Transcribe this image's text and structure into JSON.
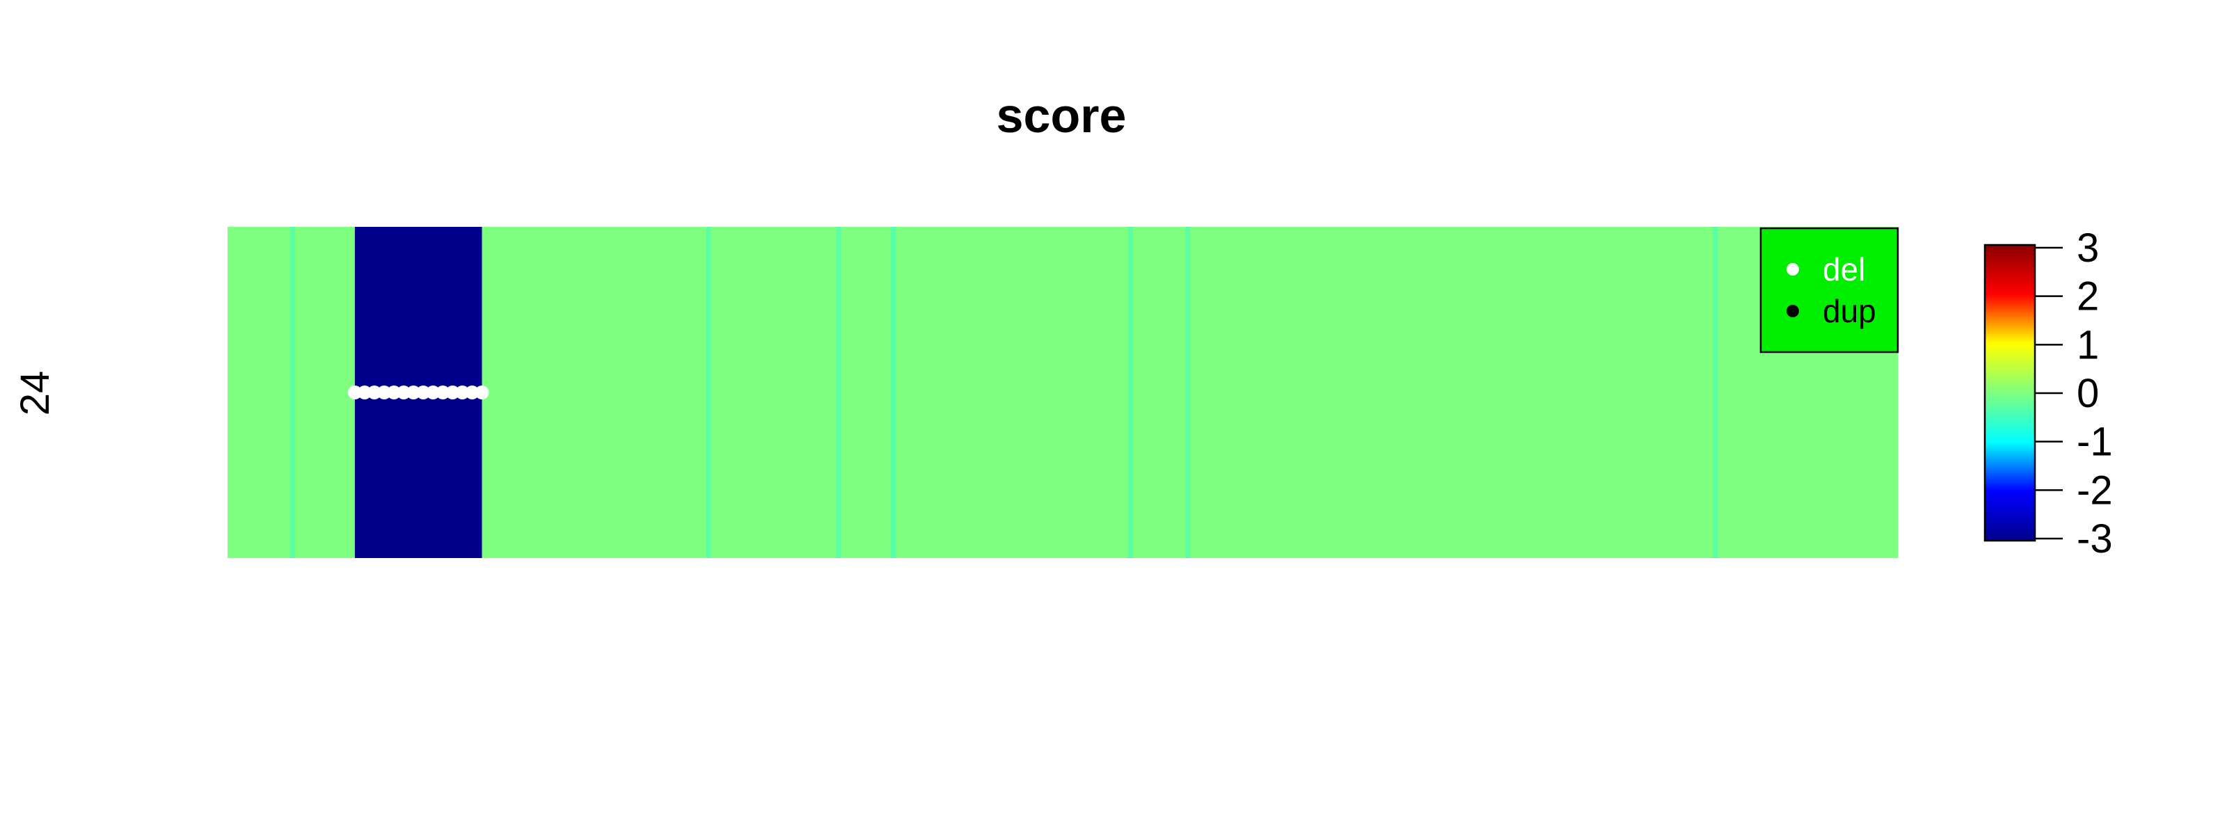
{
  "chart_data": {
    "type": "heatmap",
    "title": "score",
    "row_labels": [
      "24"
    ],
    "segments": [
      {
        "start": 0.0,
        "end": 0.0374,
        "score": 0.0
      },
      {
        "start": 0.0374,
        "end": 0.0403,
        "score": -0.3
      },
      {
        "start": 0.0403,
        "end": 0.0762,
        "score": 0.0
      },
      {
        "start": 0.0762,
        "end": 0.1523,
        "score": -3.0
      },
      {
        "start": 0.1523,
        "end": 0.2865,
        "score": 0.0
      },
      {
        "start": 0.2865,
        "end": 0.2894,
        "score": -0.3
      },
      {
        "start": 0.2894,
        "end": 0.3644,
        "score": 0.0
      },
      {
        "start": 0.3644,
        "end": 0.3673,
        "score": -0.3
      },
      {
        "start": 0.3673,
        "end": 0.3971,
        "score": 0.0
      },
      {
        "start": 0.3971,
        "end": 0.4,
        "score": -0.3
      },
      {
        "start": 0.4,
        "end": 0.5391,
        "score": 0.0
      },
      {
        "start": 0.5391,
        "end": 0.542,
        "score": -0.3
      },
      {
        "start": 0.542,
        "end": 0.5734,
        "score": 0.0
      },
      {
        "start": 0.5734,
        "end": 0.5763,
        "score": -0.3
      },
      {
        "start": 0.5763,
        "end": 0.8893,
        "score": 0.0
      },
      {
        "start": 0.8893,
        "end": 0.8922,
        "score": -0.3
      },
      {
        "start": 0.8922,
        "end": 1.0,
        "score": 0.0
      }
    ],
    "points": [
      {
        "series": "del",
        "x_from": 0.0762,
        "x_to": 0.1523,
        "count": 14
      }
    ],
    "legend": {
      "position": "top-right",
      "background": "#00ee00",
      "entries": [
        {
          "label": "del",
          "color": "#ffffff"
        },
        {
          "label": "dup",
          "color": "#000000"
        }
      ]
    },
    "colorbar": {
      "range": [
        -3,
        3
      ],
      "ticks": [
        3,
        2,
        1,
        0,
        -1,
        -2,
        -3
      ],
      "tick_labels": [
        "3",
        "2",
        "1",
        "0",
        "-1",
        "-2",
        "-3"
      ],
      "colors": [
        "#00008b",
        "#0000ff",
        "#00ffff",
        "#7fff7f",
        "#ffff00",
        "#ff0000",
        "#8b0000"
      ]
    },
    "grid": false
  }
}
